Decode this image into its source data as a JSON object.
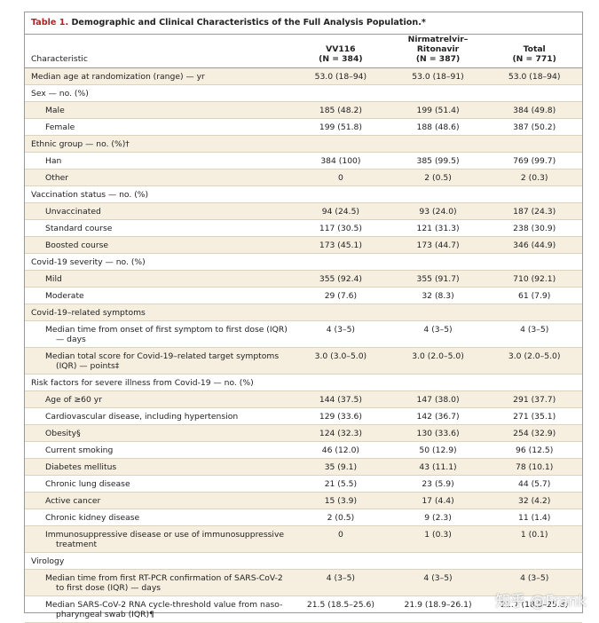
{
  "table": {
    "label": "Table 1.",
    "title": "Demographic and Clinical Characteristics of the Full Analysis Population.*",
    "header": {
      "characteristic": "Characteristic",
      "columns": [
        {
          "name": "VV116",
          "n": "(N = 384)"
        },
        {
          "name": "Nirmatrelvir–Ritonavir",
          "n": "(N = 387)"
        },
        {
          "name": "Total",
          "n": "(N = 771)"
        }
      ]
    },
    "sections": [
      {
        "label": "Median age at randomization (range) — yr",
        "values": [
          "53.0 (18–94)",
          "53.0 (18–91)",
          "53.0 (18–94)"
        ]
      },
      {
        "label": "Sex — no. (%)",
        "rows": [
          {
            "label": "Male",
            "values": [
              "185 (48.2)",
              "199 (51.4)",
              "384 (49.8)"
            ]
          },
          {
            "label": "Female",
            "values": [
              "199 (51.8)",
              "188 (48.6)",
              "387 (50.2)"
            ]
          }
        ]
      },
      {
        "label": "Ethnic group — no. (%)†",
        "rows": [
          {
            "label": "Han",
            "values": [
              "384 (100)",
              "385 (99.5)",
              "769 (99.7)"
            ]
          },
          {
            "label": "Other",
            "values": [
              "0",
              "2 (0.5)",
              "2 (0.3)"
            ]
          }
        ]
      },
      {
        "label": "Vaccination status — no. (%)",
        "rows": [
          {
            "label": "Unvaccinated",
            "values": [
              "94 (24.5)",
              "93 (24.0)",
              "187 (24.3)"
            ]
          },
          {
            "label": "Standard course",
            "values": [
              "117 (30.5)",
              "121 (31.3)",
              "238 (30.9)"
            ]
          },
          {
            "label": "Boosted course",
            "values": [
              "173 (45.1)",
              "173 (44.7)",
              "346 (44.9)"
            ]
          }
        ]
      },
      {
        "label": "Covid-19 severity — no. (%)",
        "rows": [
          {
            "label": "Mild",
            "values": [
              "355 (92.4)",
              "355 (91.7)",
              "710 (92.1)"
            ]
          },
          {
            "label": "Moderate",
            "values": [
              "29 (7.6)",
              "32 (8.3)",
              "61 (7.9)"
            ]
          }
        ]
      },
      {
        "label": "Covid-19–related symptoms",
        "rows": [
          {
            "label": "Median time from onset of first symptom to first dose (IQR) — days",
            "values": [
              "4 (3–5)",
              "4 (3–5)",
              "4 (3–5)"
            ]
          },
          {
            "label": "Median total score for Covid-19–related target symptoms (IQR) — points‡",
            "values": [
              "3.0 (3.0–5.0)",
              "3.0 (2.0–5.0)",
              "3.0 (2.0–5.0)"
            ]
          }
        ]
      },
      {
        "label": "Risk factors for severe illness from Covid-19 — no. (%)",
        "rows": [
          {
            "label": "Age of ≥60 yr",
            "values": [
              "144 (37.5)",
              "147 (38.0)",
              "291 (37.7)"
            ]
          },
          {
            "label": "Cardiovascular disease, including hypertension",
            "values": [
              "129 (33.6)",
              "142 (36.7)",
              "271 (35.1)"
            ]
          },
          {
            "label": "Obesity§",
            "values": [
              "124 (32.3)",
              "130 (33.6)",
              "254 (32.9)"
            ]
          },
          {
            "label": "Current smoking",
            "values": [
              "46 (12.0)",
              "50 (12.9)",
              "96 (12.5)"
            ]
          },
          {
            "label": "Diabetes mellitus",
            "values": [
              "35 (9.1)",
              "43 (11.1)",
              "78 (10.1)"
            ]
          },
          {
            "label": "Chronic lung disease",
            "values": [
              "21 (5.5)",
              "23 (5.9)",
              "44 (5.7)"
            ]
          },
          {
            "label": "Active cancer",
            "values": [
              "15 (3.9)",
              "17 (4.4)",
              "32 (4.2)"
            ]
          },
          {
            "label": "Chronic kidney disease",
            "values": [
              "2 (0.5)",
              "9 (2.3)",
              "11 (1.4)"
            ]
          },
          {
            "label": "Immunosuppressive disease or use of immunosuppressive treatment",
            "values": [
              "0",
              "1 (0.3)",
              "1 (0.1)"
            ]
          }
        ]
      },
      {
        "label": "Virology",
        "rows": [
          {
            "label": "Median time from first RT-PCR confirmation of SARS-CoV-2 to first dose (IQR) — days",
            "values": [
              "4 (3–5)",
              "4 (3–5)",
              "4 (3–5)"
            ]
          },
          {
            "label": "Median SARS-CoV-2 RNA cycle-threshold value from naso-pharyngeal swab (IQR)¶",
            "values": [
              "21.5 (18.5–25.6)",
              "21.9 (18.9–26.1)",
              "21.7 (18.5–25.8)"
            ]
          }
        ]
      }
    ],
    "watermark": "知乎 @Frank"
  }
}
